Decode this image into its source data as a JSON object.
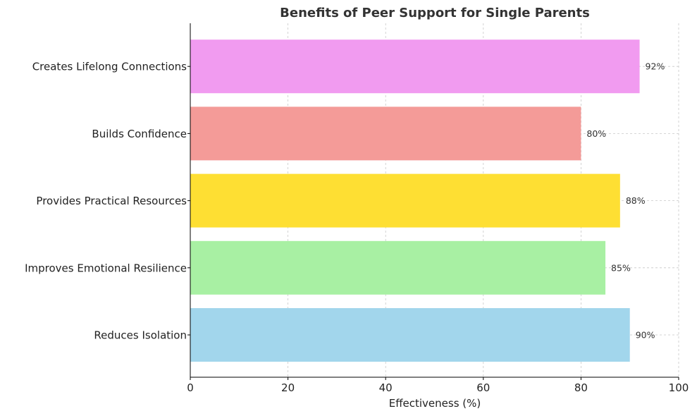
{
  "chart_data": {
    "type": "bar",
    "orientation": "horizontal",
    "title": "Benefits of Peer Support for Single Parents",
    "xlabel": "Effectiveness (%)",
    "ylabel": "",
    "xlim": [
      0,
      100
    ],
    "xticks": [
      0,
      20,
      40,
      60,
      80,
      100
    ],
    "grid": true,
    "categories": [
      "Reduces Isolation",
      "Improves Emotional Resilience",
      "Provides Practical Resources",
      "Builds Confidence",
      "Creates Lifelong Connections"
    ],
    "values": [
      90,
      85,
      88,
      80,
      92
    ],
    "value_labels": [
      "90%",
      "85%",
      "88%",
      "80%",
      "92%"
    ],
    "colors": [
      "#a2d6ec",
      "#a8f0a3",
      "#fedf33",
      "#f49b98",
      "#f19bf0"
    ]
  }
}
